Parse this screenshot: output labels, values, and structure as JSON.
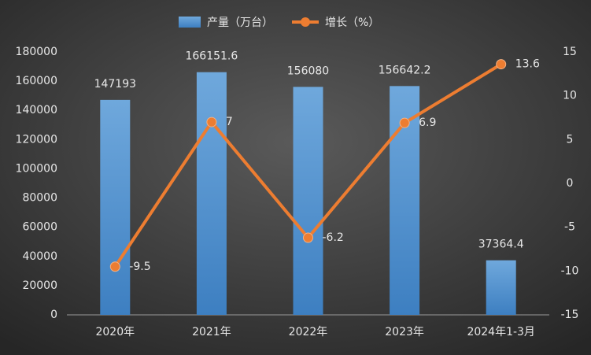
{
  "chart_data": {
    "type": "bar-line",
    "categories": [
      "2020年",
      "2021年",
      "2022年",
      "2023年",
      "2024年1-3月"
    ],
    "series": [
      {
        "name": "产量（万台）",
        "type": "bar",
        "color": "#5b9bd5",
        "values": [
          147193,
          166151.6,
          156080,
          156642.2,
          37364.4
        ]
      },
      {
        "name": "增长（%）",
        "type": "line",
        "axis": "y2",
        "color": "#ed7d31",
        "values": [
          -9.5,
          7,
          -6.2,
          6.9,
          13.6
        ]
      }
    ],
    "ylim": [
      0,
      180000
    ],
    "yticks": [
      0,
      20000,
      40000,
      60000,
      80000,
      100000,
      120000,
      140000,
      160000,
      180000
    ],
    "y2lim": [
      -15,
      15
    ],
    "y2ticks": [
      -15,
      -10,
      -5,
      0,
      5,
      10,
      15
    ],
    "grid": false,
    "legend": "top"
  }
}
